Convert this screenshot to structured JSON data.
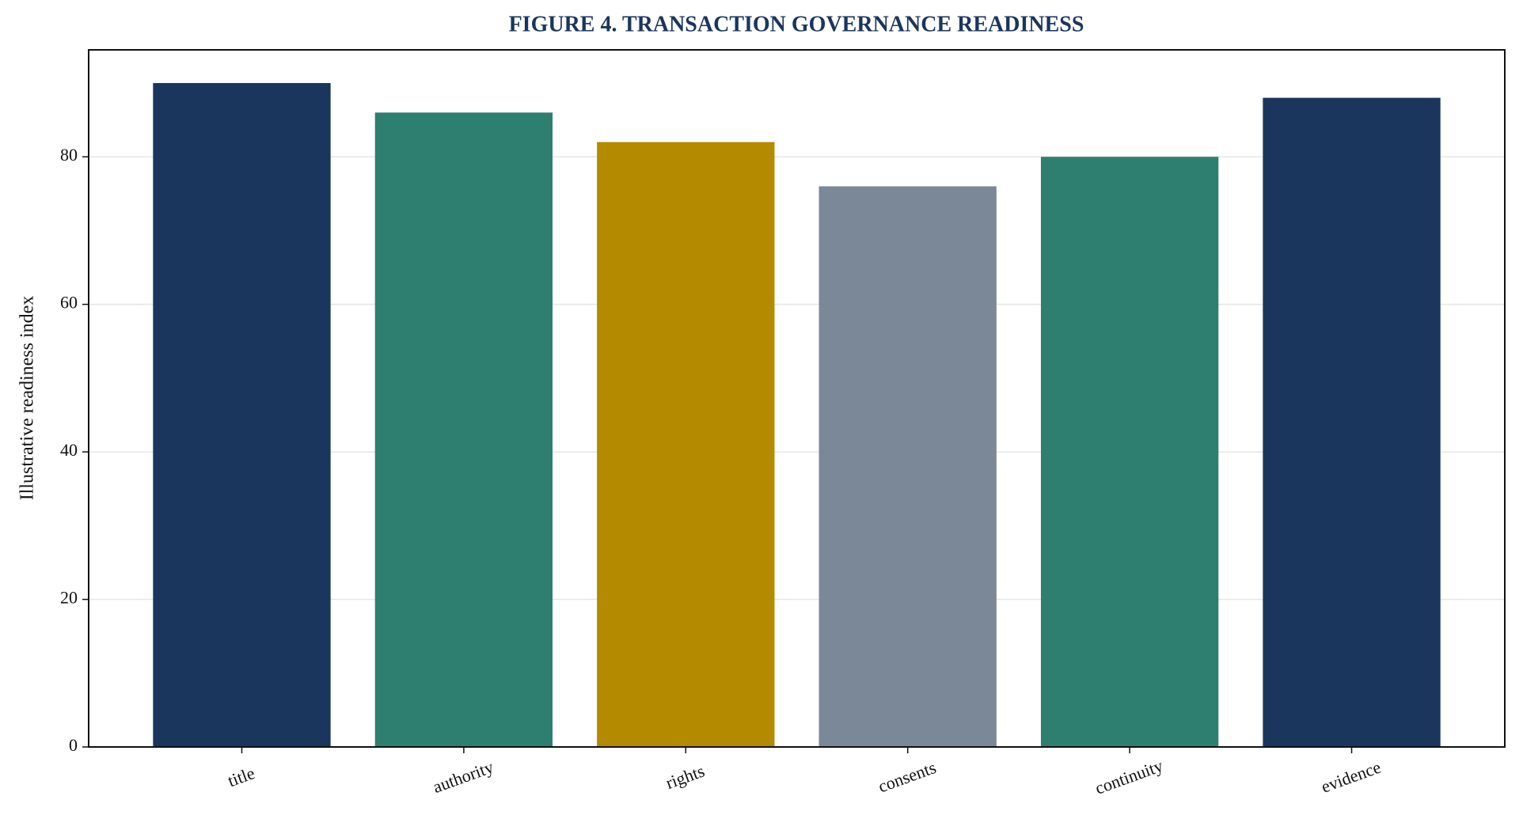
{
  "chart_data": {
    "type": "bar",
    "title": "FIGURE 4. TRANSACTION GOVERNANCE READINESS",
    "ylabel": "Illustrative readiness index",
    "categories": [
      "title",
      "authority",
      "rights",
      "consents",
      "continuity",
      "evidence"
    ],
    "values": [
      90,
      86,
      82,
      76,
      80,
      88
    ],
    "colors": [
      "#1a365d",
      "#2e7f6f",
      "#b38a00",
      "#7a8898",
      "#2e7f6f",
      "#1a365d"
    ],
    "ylim": [
      0,
      94.5
    ],
    "yticks": [
      0,
      20,
      40,
      60,
      80
    ],
    "grid": true
  }
}
